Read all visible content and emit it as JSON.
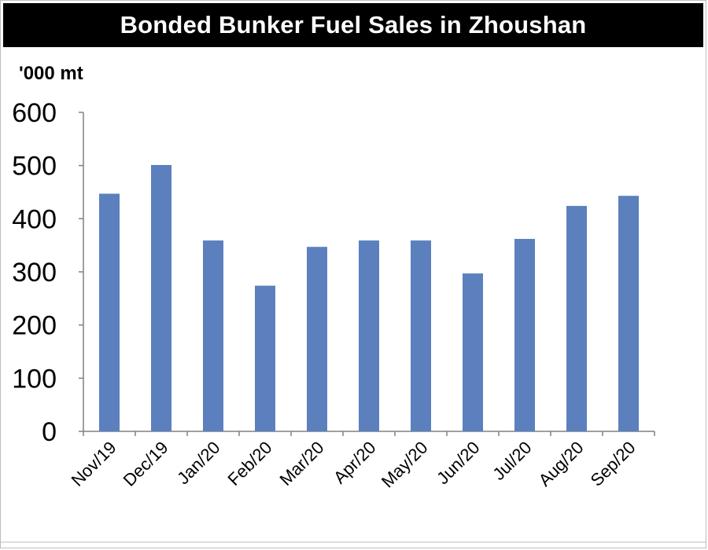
{
  "chart_data": {
    "type": "bar",
    "title": "Bonded Bunker Fuel Sales in Zhoushan",
    "ylabel": "'000 mt",
    "xlabel": "",
    "categories": [
      "Nov/19",
      "Dec/19",
      "Jan/20",
      "Feb/20",
      "Mar/20",
      "Apr/20",
      "May/20",
      "Jun/20",
      "Jul/20",
      "Aug/20",
      "Sep/20"
    ],
    "values": [
      447,
      501,
      359,
      274,
      347,
      359,
      359,
      297,
      362,
      424,
      443
    ],
    "ylim": [
      0,
      600
    ],
    "yticks": [
      "0",
      "100",
      "200",
      "300",
      "400",
      "500",
      "600"
    ],
    "grid": false,
    "bar_color": "#5b80bd"
  }
}
